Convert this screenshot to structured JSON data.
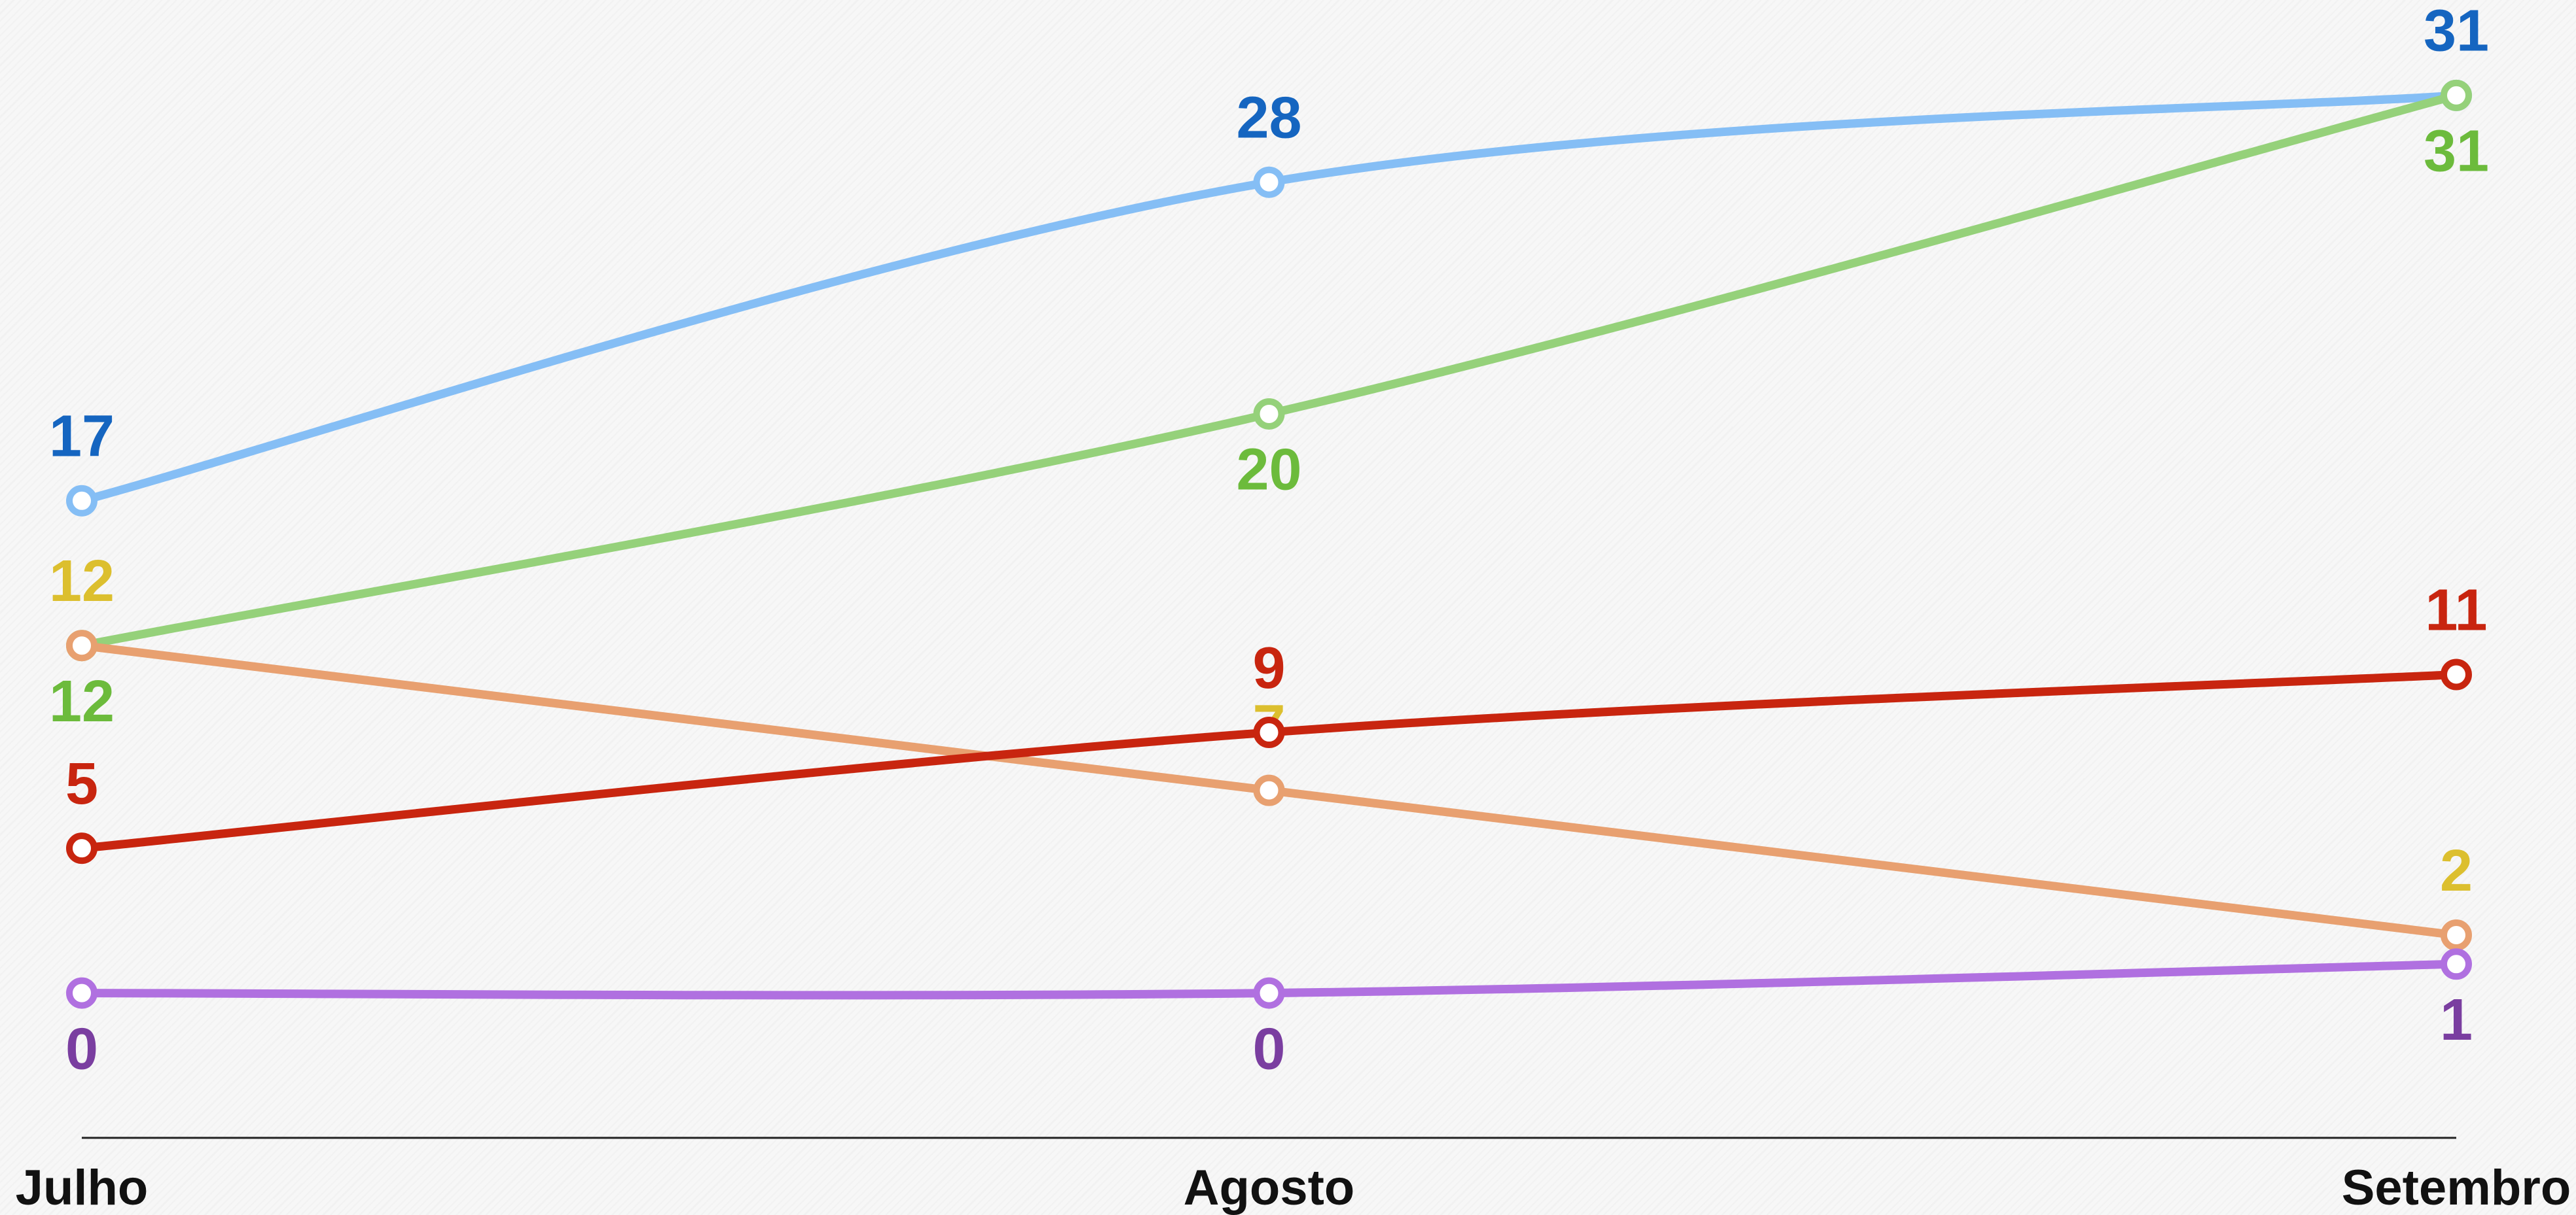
{
  "chart_data": {
    "type": "line",
    "categories": [
      "Julho",
      "Agosto",
      "Setembro"
    ],
    "series": [
      {
        "color": "#85bef5",
        "label_color": "#1565c0",
        "values": [
          17,
          28,
          31
        ]
      },
      {
        "color": "#95d17a",
        "label_color": "#6cbb3c",
        "values": [
          12,
          20,
          31
        ]
      },
      {
        "color": "#e8a070",
        "label_color": "#dcbf2e",
        "values": [
          12,
          7,
          2
        ]
      },
      {
        "color": "#c8250f",
        "label_color": "#c8250f",
        "values": [
          5,
          9,
          11
        ]
      },
      {
        "color": "#b070e0",
        "label_color": "#7a3ea0",
        "values": [
          0,
          0,
          1
        ]
      }
    ],
    "ylim": [
      -5,
      34
    ],
    "grid": false
  }
}
